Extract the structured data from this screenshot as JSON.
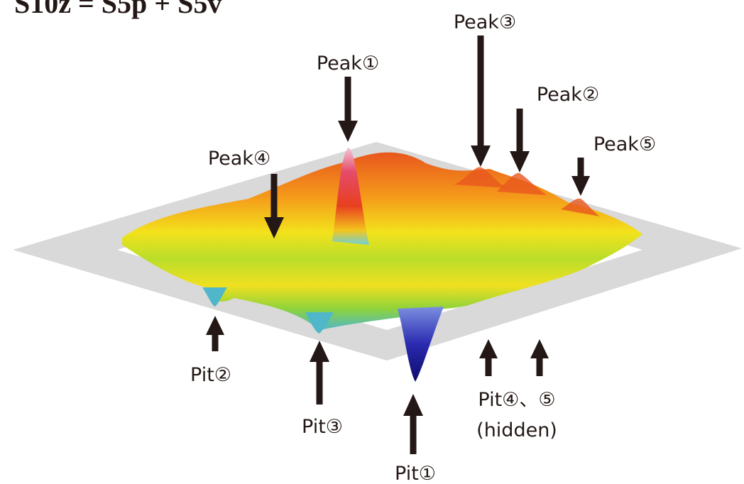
{
  "title": "S10z = S5p + S5v",
  "peaks": [
    "Peak①",
    "Peak②",
    "Peak③",
    "Peak④",
    "Peak⑤"
  ],
  "pits": [
    "Pit①",
    "Pit②",
    "Pit③"
  ],
  "hidden_pits": {
    "label": "Pit④、⑤",
    "note": "(hidden)"
  }
}
